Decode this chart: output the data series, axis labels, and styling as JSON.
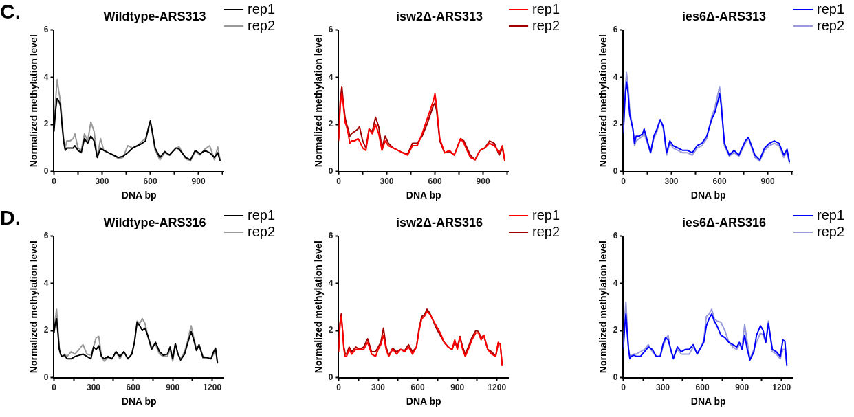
{
  "chart_data": [
    {
      "type": "line",
      "title": "Wildtype-ARS313",
      "xlabel": "DNA bp",
      "ylabel": "Normalized methylation level",
      "annotations": [
        "C."
      ],
      "legend": "top right",
      "grid": false,
      "x": [
        0,
        10,
        20,
        30,
        40,
        50,
        60,
        70,
        80,
        100,
        120,
        130,
        150,
        170,
        190,
        210,
        230,
        250,
        270,
        290,
        310,
        340,
        370,
        400,
        430,
        460,
        490,
        520,
        550,
        570,
        590,
        600,
        610,
        630,
        660,
        690,
        720,
        760,
        780,
        820,
        850,
        880,
        910,
        940,
        970,
        1000,
        1020,
        1035
      ],
      "xlim": [
        0,
        1060
      ],
      "xticks": [
        0,
        {
          "value": 150,
          "label": null
        },
        300,
        {
          "value": 450,
          "label": null
        },
        600,
        {
          "value": 750,
          "label": null
        },
        900,
        {
          "value": 1050,
          "label": null
        }
      ],
      "ylim": [
        0,
        6
      ],
      "yticks": [
        0,
        2,
        4,
        6
      ],
      "series": [
        {
          "name": "rep1",
          "color": "#000000",
          "values": [
            1.7,
            2.6,
            3.1,
            3.0,
            2.8,
            2.0,
            1.3,
            0.9,
            1.0,
            1.0,
            1.0,
            1.1,
            0.9,
            0.8,
            1.4,
            1.2,
            1.5,
            1.3,
            0.6,
            1.0,
            0.9,
            0.8,
            0.7,
            0.6,
            0.65,
            0.8,
            1.0,
            1.1,
            1.2,
            1.3,
            1.9,
            2.15,
            1.8,
            1.0,
            0.6,
            0.85,
            0.7,
            1.0,
            0.95,
            0.6,
            0.5,
            0.9,
            0.75,
            0.9,
            0.8,
            0.6,
            0.8,
            0.45
          ]
        },
        {
          "name": "rep2",
          "color": "#999999",
          "values": [
            1.8,
            3.0,
            3.9,
            3.4,
            3.0,
            2.2,
            1.4,
            1.0,
            1.3,
            1.3,
            1.4,
            1.6,
            1.0,
            0.9,
            1.6,
            1.3,
            2.1,
            1.7,
            0.6,
            1.4,
            0.9,
            0.8,
            0.7,
            0.55,
            0.6,
            1.1,
            1.0,
            1.1,
            1.3,
            1.4,
            1.8,
            2.1,
            1.7,
            0.9,
            0.5,
            0.8,
            0.7,
            1.0,
            1.05,
            0.55,
            0.45,
            0.85,
            0.7,
            0.95,
            1.1,
            0.5,
            1.05,
            0.5
          ]
        }
      ]
    },
    {
      "type": "line",
      "title": "isw2Δ-ARS313",
      "xlabel": "DNA bp",
      "ylabel": "Normalized methylation level",
      "legend": "top right",
      "grid": false,
      "x": [
        0,
        10,
        20,
        30,
        40,
        50,
        60,
        70,
        80,
        100,
        120,
        130,
        150,
        170,
        190,
        210,
        230,
        250,
        270,
        290,
        310,
        340,
        370,
        400,
        430,
        460,
        490,
        520,
        550,
        570,
        590,
        600,
        610,
        630,
        660,
        690,
        720,
        760,
        780,
        820,
        850,
        880,
        910,
        940,
        970,
        1000,
        1020,
        1035
      ],
      "xlim": [
        0,
        1060
      ],
      "xticks": [
        0,
        {
          "value": 150,
          "label": null
        },
        300,
        {
          "value": 450,
          "label": null
        },
        600,
        {
          "value": 750,
          "label": null
        },
        900,
        {
          "value": 1050,
          "label": null
        }
      ],
      "ylim": [
        0,
        6
      ],
      "yticks": [
        0,
        2,
        4,
        6
      ],
      "series": [
        {
          "name": "rep1",
          "color": "#ff0000",
          "values": [
            1.3,
            2.8,
            3.3,
            2.8,
            2.1,
            1.9,
            1.6,
            1.2,
            1.3,
            1.3,
            1.4,
            1.3,
            1.0,
            0.9,
            1.8,
            1.6,
            2.0,
            1.6,
            0.9,
            1.3,
            1.1,
            1.0,
            0.9,
            0.8,
            0.7,
            1.1,
            1.1,
            1.6,
            2.2,
            2.6,
            3.0,
            3.3,
            2.8,
            1.4,
            0.8,
            0.9,
            0.7,
            1.4,
            1.2,
            0.6,
            0.5,
            0.9,
            1.0,
            1.2,
            1.1,
            0.8,
            1.1,
            0.45
          ]
        },
        {
          "name": "rep2",
          "color": "#a00000",
          "values": [
            1.4,
            3.0,
            3.6,
            2.9,
            2.3,
            2.0,
            1.8,
            1.5,
            1.6,
            1.7,
            1.8,
            1.9,
            1.3,
            1.0,
            1.8,
            1.7,
            2.3,
            1.9,
            1.0,
            1.5,
            1.2,
            1.0,
            0.9,
            0.8,
            0.75,
            1.2,
            1.2,
            1.5,
            2.0,
            2.4,
            2.8,
            2.9,
            2.6,
            1.3,
            0.8,
            0.85,
            0.7,
            1.4,
            1.3,
            0.7,
            0.5,
            0.9,
            1.0,
            1.3,
            1.2,
            0.7,
            1.0,
            0.45
          ]
        }
      ]
    },
    {
      "type": "line",
      "title": "ies6Δ-ARS313",
      "xlabel": "DNA bp",
      "ylabel": "Normalized methylation level",
      "legend": "top right",
      "grid": false,
      "x": [
        0,
        10,
        20,
        30,
        40,
        50,
        60,
        70,
        80,
        100,
        120,
        130,
        150,
        170,
        190,
        210,
        230,
        250,
        270,
        290,
        310,
        340,
        370,
        400,
        430,
        460,
        490,
        520,
        550,
        570,
        590,
        600,
        610,
        630,
        660,
        690,
        720,
        760,
        780,
        820,
        850,
        880,
        910,
        940,
        970,
        1000,
        1020,
        1035
      ],
      "xlim": [
        0,
        1060
      ],
      "xticks": [
        0,
        {
          "value": 150,
          "label": null
        },
        300,
        {
          "value": 450,
          "label": null
        },
        600,
        {
          "value": 750,
          "label": null
        },
        900,
        {
          "value": 1050,
          "label": null
        }
      ],
      "ylim": [
        0,
        6
      ],
      "yticks": [
        0,
        2,
        4,
        6
      ],
      "series": [
        {
          "name": "rep1",
          "color": "#0000ff",
          "values": [
            1.6,
            3.0,
            3.8,
            3.3,
            2.4,
            2.1,
            1.8,
            1.2,
            1.5,
            1.5,
            1.6,
            1.8,
            1.3,
            0.8,
            1.5,
            1.8,
            2.2,
            1.9,
            0.8,
            1.3,
            1.1,
            1.0,
            0.9,
            0.9,
            0.8,
            1.1,
            1.2,
            1.5,
            2.2,
            2.5,
            3.0,
            3.3,
            2.8,
            1.2,
            0.7,
            0.9,
            0.7,
            1.3,
            1.45,
            0.7,
            0.5,
            1.0,
            1.2,
            1.3,
            1.2,
            0.7,
            0.95,
            0.4
          ]
        },
        {
          "name": "rep2",
          "color": "#9999dd",
          "values": [
            1.7,
            3.3,
            4.2,
            3.6,
            2.6,
            2.2,
            1.8,
            1.1,
            1.3,
            1.4,
            1.5,
            1.6,
            1.2,
            0.8,
            1.4,
            1.7,
            2.2,
            1.8,
            0.7,
            1.2,
            1.0,
            0.9,
            0.8,
            0.8,
            0.7,
            1.0,
            1.1,
            1.4,
            2.3,
            2.7,
            3.3,
            3.6,
            3.0,
            1.1,
            0.65,
            0.8,
            0.65,
            1.2,
            1.4,
            0.6,
            0.45,
            0.9,
            1.1,
            1.2,
            1.1,
            0.6,
            0.85,
            0.35
          ]
        }
      ]
    },
    {
      "type": "line",
      "title": "Wildtype-ARS316",
      "xlabel": "DNA bp",
      "ylabel": "Normalized methylation level",
      "annotations": [
        "D."
      ],
      "legend": "top right",
      "grid": false,
      "x": [
        0,
        10,
        20,
        30,
        40,
        50,
        60,
        80,
        100,
        130,
        160,
        190,
        220,
        250,
        280,
        300,
        320,
        340,
        360,
        380,
        410,
        440,
        470,
        500,
        530,
        560,
        590,
        610,
        630,
        650,
        670,
        690,
        710,
        740,
        770,
        800,
        830,
        860,
        880,
        900,
        920,
        940,
        960,
        990,
        1010,
        1040,
        1060,
        1080,
        1100,
        1130,
        1160,
        1190,
        1210,
        1225,
        1240
      ],
      "xlim": [
        0,
        1290
      ],
      "xticks": [
        0,
        {
          "value": 150,
          "label": null
        },
        300,
        {
          "value": 450,
          "label": null
        },
        600,
        {
          "value": 750,
          "label": null
        },
        900,
        {
          "value": 1050,
          "label": null
        },
        1200
      ],
      "ylim": [
        0,
        6
      ],
      "yticks": [
        0,
        2,
        4,
        6
      ],
      "series": [
        {
          "name": "rep1",
          "color": "#000000",
          "values": [
            1.9,
            2.3,
            2.5,
            1.9,
            1.2,
            1.0,
            0.9,
            0.95,
            0.8,
            0.8,
            0.9,
            0.95,
            1.0,
            0.9,
            0.8,
            1.3,
            1.2,
            1.35,
            0.9,
            0.8,
            0.9,
            0.8,
            1.1,
            0.9,
            1.1,
            0.8,
            1.0,
            1.5,
            2.35,
            2.2,
            2.0,
            2.1,
            1.8,
            1.2,
            1.5,
            1.1,
            0.95,
            1.0,
            1.3,
            0.8,
            1.45,
            1.0,
            0.75,
            1.0,
            1.4,
            1.95,
            1.6,
            1.15,
            1.4,
            0.85,
            0.85,
            0.8,
            1.1,
            1.25,
            0.6
          ]
        },
        {
          "name": "rep2",
          "color": "#999999",
          "values": [
            2.0,
            2.5,
            2.9,
            2.1,
            1.3,
            1.0,
            0.9,
            1.0,
            0.9,
            1.1,
            1.0,
            1.2,
            1.4,
            1.0,
            0.95,
            1.3,
            1.7,
            1.75,
            0.9,
            0.7,
            0.85,
            0.8,
            1.1,
            0.8,
            1.1,
            0.8,
            1.0,
            1.5,
            2.4,
            2.3,
            2.5,
            2.3,
            1.8,
            1.3,
            1.4,
            1.0,
            0.9,
            0.9,
            1.2,
            0.7,
            1.4,
            1.0,
            0.8,
            1.1,
            1.5,
            2.2,
            1.7,
            1.2,
            1.35,
            0.9,
            0.85,
            0.8,
            1.0,
            1.2,
            0.6
          ]
        }
      ]
    },
    {
      "type": "line",
      "title": "isw2Δ-ARS316",
      "xlabel": "DNA bp",
      "ylabel": "Normalized methylation level",
      "legend": "top right",
      "grid": false,
      "x": [
        0,
        10,
        20,
        30,
        40,
        50,
        60,
        80,
        100,
        130,
        160,
        190,
        220,
        250,
        280,
        300,
        320,
        340,
        360,
        380,
        410,
        440,
        470,
        500,
        530,
        560,
        590,
        610,
        630,
        650,
        670,
        690,
        710,
        740,
        770,
        800,
        830,
        860,
        880,
        900,
        920,
        940,
        960,
        990,
        1010,
        1040,
        1060,
        1080,
        1100,
        1130,
        1160,
        1190,
        1210,
        1225,
        1240
      ],
      "xlim": [
        0,
        1290
      ],
      "xticks": [
        0,
        {
          "value": 150,
          "label": null
        },
        300,
        {
          "value": 450,
          "label": null
        },
        600,
        {
          "value": 750,
          "label": null
        },
        900,
        {
          "value": 1050,
          "label": null
        },
        1200
      ],
      "ylim": [
        0,
        6
      ],
      "yticks": [
        0,
        2,
        4,
        6
      ],
      "series": [
        {
          "name": "rep1",
          "color": "#ff0000",
          "values": [
            1.1,
            2.2,
            2.6,
            2.0,
            1.2,
            0.9,
            0.9,
            1.2,
            1.0,
            1.2,
            1.2,
            1.2,
            1.5,
            1.0,
            0.9,
            1.2,
            1.4,
            1.8,
            1.2,
            0.9,
            1.2,
            1.0,
            1.2,
            1.1,
            1.3,
            1.0,
            1.3,
            2.0,
            2.5,
            2.6,
            2.8,
            2.7,
            2.5,
            2.2,
            1.9,
            1.5,
            1.3,
            1.2,
            1.6,
            1.2,
            1.7,
            1.2,
            0.9,
            1.3,
            1.6,
            1.9,
            1.9,
            1.6,
            1.8,
            1.2,
            1.0,
            0.9,
            1.5,
            1.4,
            0.5
          ]
        },
        {
          "name": "rep2",
          "color": "#a00000",
          "values": [
            1.2,
            2.3,
            2.7,
            2.0,
            1.3,
            1.0,
            1.0,
            1.3,
            1.1,
            1.3,
            1.2,
            1.3,
            1.65,
            1.1,
            1.1,
            1.3,
            1.5,
            2.1,
            1.3,
            0.95,
            1.25,
            1.1,
            1.2,
            1.15,
            1.4,
            1.1,
            1.3,
            2.1,
            2.6,
            2.65,
            2.9,
            2.75,
            2.5,
            2.1,
            1.8,
            1.5,
            1.3,
            1.2,
            1.5,
            1.3,
            1.75,
            1.3,
            1.0,
            1.4,
            1.7,
            2.0,
            1.95,
            1.7,
            1.8,
            1.2,
            1.1,
            0.9,
            1.45,
            1.45,
            0.5
          ]
        }
      ]
    },
    {
      "type": "line",
      "title": "ies6Δ-ARS316",
      "xlabel": "DNA bp",
      "ylabel": "Normalized methylation level",
      "legend": "top right",
      "grid": false,
      "x": [
        0,
        10,
        20,
        30,
        40,
        50,
        60,
        80,
        100,
        130,
        160,
        190,
        220,
        250,
        280,
        300,
        320,
        340,
        360,
        380,
        410,
        440,
        470,
        500,
        530,
        560,
        590,
        610,
        630,
        650,
        670,
        690,
        710,
        740,
        770,
        800,
        830,
        860,
        880,
        900,
        920,
        940,
        960,
        990,
        1010,
        1040,
        1060,
        1080,
        1100,
        1130,
        1160,
        1190,
        1210,
        1225,
        1240
      ],
      "xlim": [
        0,
        1290
      ],
      "xticks": [
        0,
        {
          "value": 150,
          "label": null
        },
        300,
        {
          "value": 450,
          "label": null
        },
        600,
        {
          "value": 750,
          "label": null
        },
        900,
        {
          "value": 1050,
          "label": null
        },
        1200
      ],
      "ylim": [
        0,
        6
      ],
      "yticks": [
        0,
        2,
        4,
        6
      ],
      "series": [
        {
          "name": "rep1",
          "color": "#0000ff",
          "values": [
            1.2,
            2.1,
            2.7,
            1.9,
            1.2,
            0.8,
            0.9,
            0.95,
            0.9,
            0.9,
            1.1,
            1.3,
            1.2,
            0.9,
            0.9,
            1.4,
            1.7,
            1.6,
            1.2,
            0.8,
            1.3,
            1.1,
            1.2,
            1.2,
            1.4,
            1.0,
            1.3,
            1.5,
            2.2,
            2.5,
            2.7,
            2.4,
            2.2,
            1.8,
            1.7,
            1.5,
            1.4,
            1.3,
            1.5,
            1.2,
            1.8,
            1.2,
            0.75,
            1.1,
            1.8,
            2.2,
            2.0,
            1.5,
            2.3,
            1.2,
            1.1,
            0.9,
            1.6,
            1.55,
            0.5
          ]
        },
        {
          "name": "rep2",
          "color": "#9999dd",
          "values": [
            1.3,
            2.5,
            3.2,
            2.2,
            1.2,
            0.9,
            0.95,
            1.0,
            1.0,
            1.1,
            1.2,
            1.4,
            1.1,
            0.9,
            0.9,
            1.3,
            1.6,
            1.8,
            1.1,
            0.9,
            1.2,
            1.0,
            1.0,
            1.0,
            1.3,
            1.05,
            1.3,
            1.6,
            2.6,
            2.7,
            2.9,
            2.5,
            2.4,
            2.35,
            2.0,
            1.5,
            1.3,
            1.2,
            1.4,
            1.3,
            2.25,
            1.5,
            0.8,
            1.2,
            1.5,
            1.9,
            1.8,
            1.5,
            2.4,
            1.1,
            1.0,
            0.8,
            1.2,
            1.2,
            0.5
          ]
        }
      ]
    }
  ]
}
